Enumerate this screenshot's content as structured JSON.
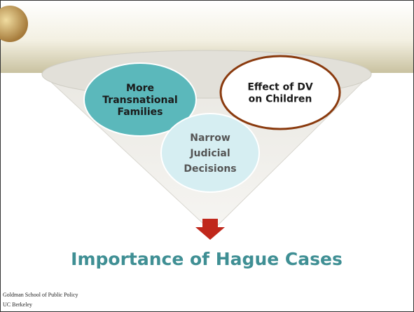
{
  "bubbles": [
    {
      "lines": [
        "More",
        "Transnational",
        "Families"
      ]
    },
    {
      "lines": [
        "Effect of DV",
        "on Children"
      ]
    },
    {
      "lines": [
        "Narrow",
        "Judicial",
        "Decisions"
      ]
    }
  ],
  "title": "Importance of Hague Cases",
  "footer": [
    "Goldman School of Public Policy",
    "UC Berkeley"
  ]
}
